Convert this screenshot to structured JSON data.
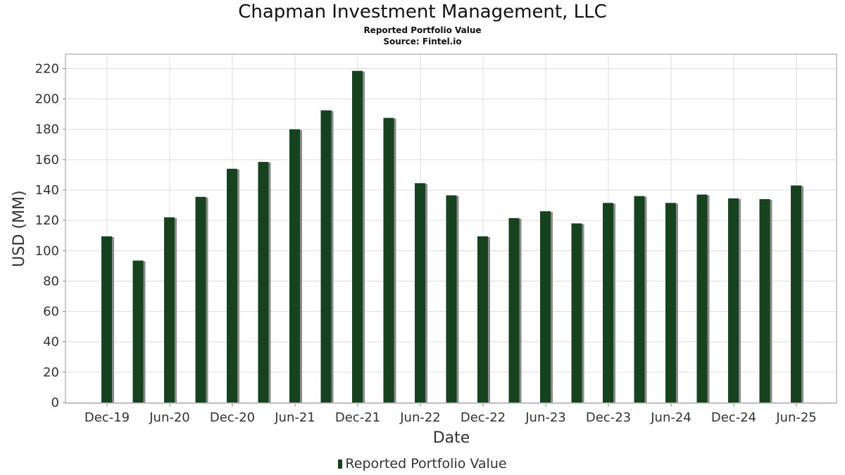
{
  "chart_data": {
    "type": "bar",
    "title": "Chapman Investment Management, LLC",
    "subtitle": "Reported Portfolio Value",
    "source": "Source: Fintel.io",
    "xlabel": "Date",
    "ylabel": "USD (MM)",
    "ylim": [
      0,
      230
    ],
    "yticks": [
      0,
      20,
      40,
      60,
      80,
      100,
      120,
      140,
      160,
      180,
      200,
      220
    ],
    "x_tick_labels": [
      "Dec-19",
      "Jun-20",
      "Dec-20",
      "Jun-21",
      "Dec-21",
      "Jun-22",
      "Dec-22",
      "Jun-23",
      "Dec-23",
      "Jun-24",
      "Dec-24",
      "Jun-25"
    ],
    "categories": [
      "Dec-19",
      "Mar-20",
      "Jun-20",
      "Sep-20",
      "Dec-20",
      "Mar-21",
      "Jun-21",
      "Sep-21",
      "Dec-21",
      "Mar-22",
      "Jun-22",
      "Sep-22",
      "Dec-22",
      "Mar-23",
      "Jun-23",
      "Sep-23",
      "Dec-23",
      "Mar-24",
      "Jun-24",
      "Sep-24",
      "Dec-24",
      "Mar-25",
      "Jun-25"
    ],
    "series": [
      {
        "name": "Reported Portfolio Value",
        "color": "#16421f",
        "values": [
          109.5,
          93.5,
          122,
          135.5,
          154,
          158.5,
          180,
          192.5,
          218.5,
          187.5,
          144.5,
          136.5,
          109.5,
          121.5,
          126,
          118,
          131.5,
          136,
          131.5,
          137,
          134.5,
          134,
          143
        ]
      }
    ],
    "grid": true,
    "legend_position": "bottom-center"
  }
}
